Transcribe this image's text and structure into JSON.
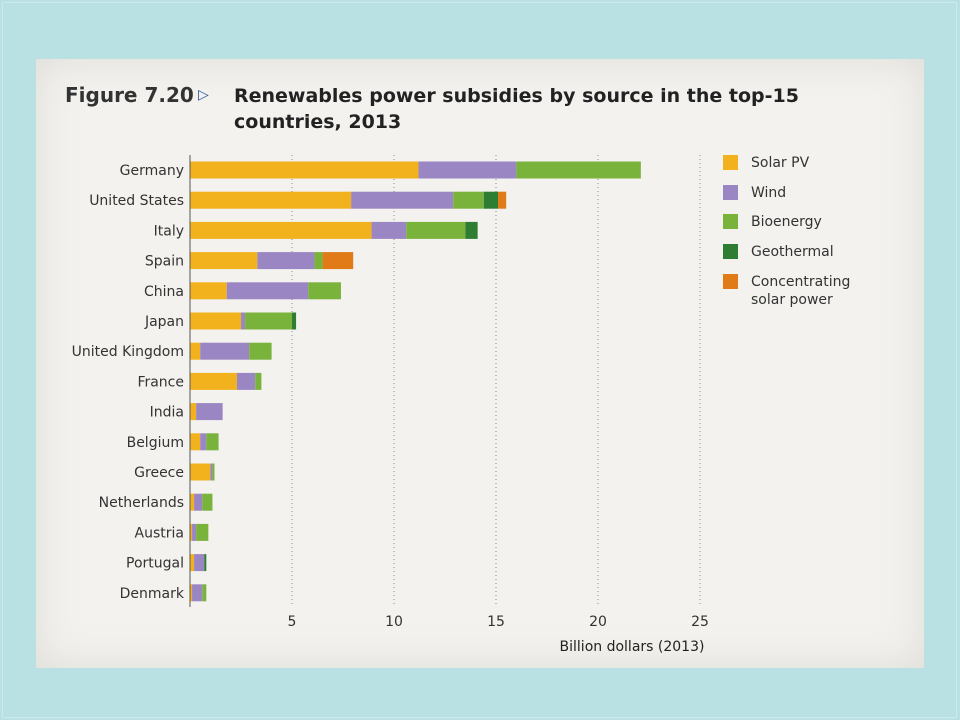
{
  "figure": {
    "label": "Figure 7.20",
    "title": "Renewables power subsidies by source in the top-15 countries, 2013"
  },
  "chart_data": {
    "type": "bar",
    "orientation": "horizontal",
    "stacked": true,
    "title": "Renewables power subsidies by source in the top-15 countries, 2013",
    "xlabel": "Billion dollars (2013)",
    "ylabel": "",
    "xlim": [
      0,
      26
    ],
    "xticks": [
      5,
      10,
      15,
      20,
      25
    ],
    "grid": "vertical dotted",
    "legend_position": "right",
    "categories": [
      "Germany",
      "United States",
      "Italy",
      "Spain",
      "China",
      "Japan",
      "United Kingdom",
      "France",
      "India",
      "Belgium",
      "Greece",
      "Netherlands",
      "Austria",
      "Portugal",
      "Denmark"
    ],
    "series": [
      {
        "name": "Solar PV",
        "color": "#f2b21e",
        "values": [
          11.2,
          7.9,
          8.9,
          3.3,
          1.8,
          2.5,
          0.5,
          2.3,
          0.3,
          0.5,
          1.0,
          0.2,
          0.1,
          0.2,
          0.1
        ]
      },
      {
        "name": "Wind",
        "color": "#9b86c4",
        "values": [
          4.8,
          5.0,
          1.7,
          2.8,
          4.0,
          0.2,
          2.4,
          0.9,
          1.3,
          0.3,
          0.1,
          0.4,
          0.2,
          0.5,
          0.5
        ]
      },
      {
        "name": "Bioenergy",
        "color": "#7ab33c",
        "values": [
          6.1,
          1.5,
          2.9,
          0.4,
          1.6,
          2.3,
          1.1,
          0.3,
          0.0,
          0.6,
          0.1,
          0.5,
          0.6,
          0.0,
          0.2
        ]
      },
      {
        "name": "Geothermal",
        "color": "#2e7d32",
        "values": [
          0.0,
          0.7,
          0.6,
          0.0,
          0.0,
          0.2,
          0.0,
          0.0,
          0.0,
          0.0,
          0.0,
          0.0,
          0.0,
          0.1,
          0.0
        ]
      },
      {
        "name": "Concentrating solar power",
        "color": "#e07b18",
        "values": [
          0.0,
          0.4,
          0.0,
          1.5,
          0.0,
          0.0,
          0.0,
          0.0,
          0.0,
          0.0,
          0.0,
          0.0,
          0.0,
          0.0,
          0.0
        ]
      }
    ],
    "legend": [
      {
        "lines": [
          "Solar PV"
        ]
      },
      {
        "lines": [
          "Wind"
        ]
      },
      {
        "lines": [
          "Bioenergy"
        ]
      },
      {
        "lines": [
          "Geothermal"
        ]
      },
      {
        "lines": [
          "Concentrating",
          "solar power"
        ]
      }
    ]
  }
}
